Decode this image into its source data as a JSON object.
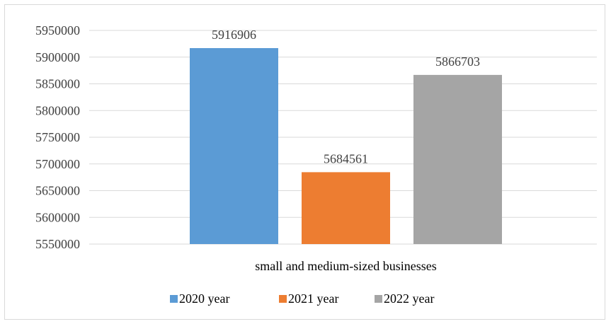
{
  "chart_data": {
    "type": "bar",
    "categories": [
      "small and medium-sized businesses"
    ],
    "series": [
      {
        "name": "2020 year",
        "values": [
          5916906
        ],
        "color": "#5b9bd5"
      },
      {
        "name": "2021 year",
        "values": [
          5684561
        ],
        "color": "#ed7d31"
      },
      {
        "name": "2022 year",
        "values": [
          5866703
        ],
        "color": "#a5a5a5"
      }
    ],
    "ylim": [
      5550000,
      5950000
    ],
    "yticks": [
      "5550000",
      "5600000",
      "5650000",
      "5700000",
      "5750000",
      "5800000",
      "5850000",
      "5900000",
      "5950000"
    ],
    "data_labels": [
      "5916906",
      "5684561",
      "5866703"
    ],
    "title": "",
    "xlabel": "",
    "ylabel": "",
    "grid": true,
    "legend_position": "bottom"
  }
}
